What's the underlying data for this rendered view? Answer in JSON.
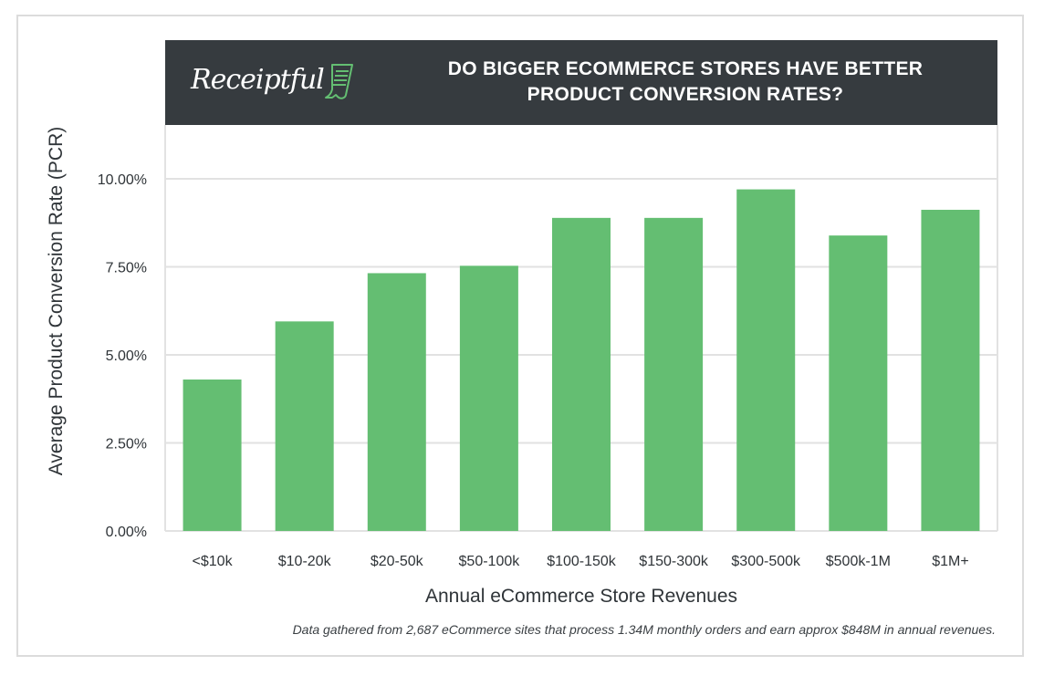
{
  "header": {
    "logo_text": "Receiptful",
    "title_line1": "DO BIGGER ECOMMERCE STORES HAVE BETTER",
    "title_line2": "PRODUCT CONVERSION RATES?"
  },
  "footnote": "Data gathered from 2,687 eCommerce sites that process 1.34M monthly orders and earn approx $848M in annual revenues.",
  "colors": {
    "bar": "#64be72",
    "header_bg": "#363b3f",
    "grid": "#e2e2e2",
    "logo_accent": "#64be72"
  },
  "chart_data": {
    "type": "bar",
    "categories": [
      "<$10k",
      "$10-20k",
      "$20-50k",
      "$50-100k",
      "$100-150k",
      "$150-300k",
      "$300-500k",
      "$500k-1M",
      "$1M+"
    ],
    "values": [
      4.3,
      5.95,
      7.32,
      7.53,
      8.89,
      8.89,
      9.7,
      8.39,
      9.12
    ],
    "title": "DO BIGGER ECOMMERCE STORES HAVE BETTER PRODUCT CONVERSION RATES?",
    "xlabel": "Annual eCommerce Store Revenues",
    "ylabel": "Average Product Conversion Rate (PCR)",
    "ylim": [
      0,
      10
    ],
    "yticks": [
      0,
      2.5,
      5,
      7.5,
      10
    ],
    "ytick_labels": [
      "0.00%",
      "2.50%",
      "5.00%",
      "7.50%",
      "10.00%"
    ],
    "grid": true,
    "legend": "none"
  }
}
